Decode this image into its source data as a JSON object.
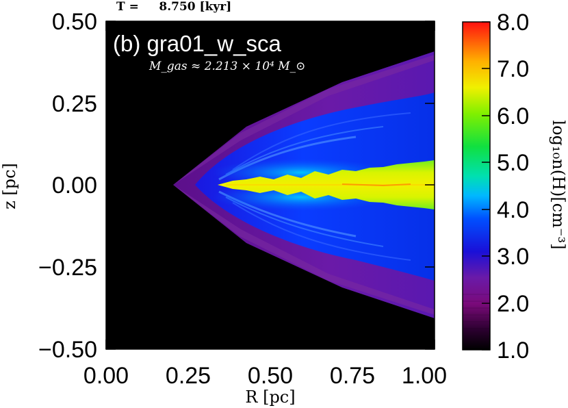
{
  "time_label": "T =     8.750 [kyr]",
  "panel_title": "(b) gra01_w_sca",
  "mass_label": "M_gas ≈ 2.213 × 10⁴ M_⊙",
  "xlabel": "R [pc]",
  "ylabel": "z [pc]",
  "colorbar_label": "log₁₀n(H)[cm⁻³]",
  "colors": {
    "background_field": "#000000",
    "plot_frame": "#000000"
  },
  "chart_data": {
    "type": "heatmap",
    "title": "(b) gra01_w_sca",
    "xlabel": "R [pc]",
    "ylabel": "z [pc]",
    "xlim": [
      0.0,
      1.0
    ],
    "ylim": [
      -0.5,
      0.5
    ],
    "x_ticks": [
      "0.00",
      "0.25",
      "0.50",
      "0.75",
      "1.00"
    ],
    "y_ticks": [
      "0.50",
      "0.25",
      "0.00",
      "−0.25",
      "−0.50"
    ],
    "colorbar": {
      "label": "log₁₀n(H)[cm⁻³]",
      "range": [
        1.0,
        8.0
      ],
      "ticks": [
        "8.0",
        "7.0",
        "6.0",
        "5.0",
        "4.0",
        "3.0",
        "2.0",
        "1.0"
      ],
      "colormap": "rainbow (black–purple–blue–cyan–green–yellow–orange–red)"
    },
    "features": {
      "outflow_cone_apex_R": 0.2,
      "outflow_cone_edge_z_at_R1": 0.4,
      "outflow_cone_edge_z_at_R1_lower": -0.4,
      "disk_inner_R": 0.33,
      "disk_halfthickness_z_at_R1": 0.06,
      "background_log_n": 1.0,
      "cone_shell_log_n": 2.3,
      "cone_interior_log_n": 3.0,
      "disk_log_n": 6.8
    }
  }
}
